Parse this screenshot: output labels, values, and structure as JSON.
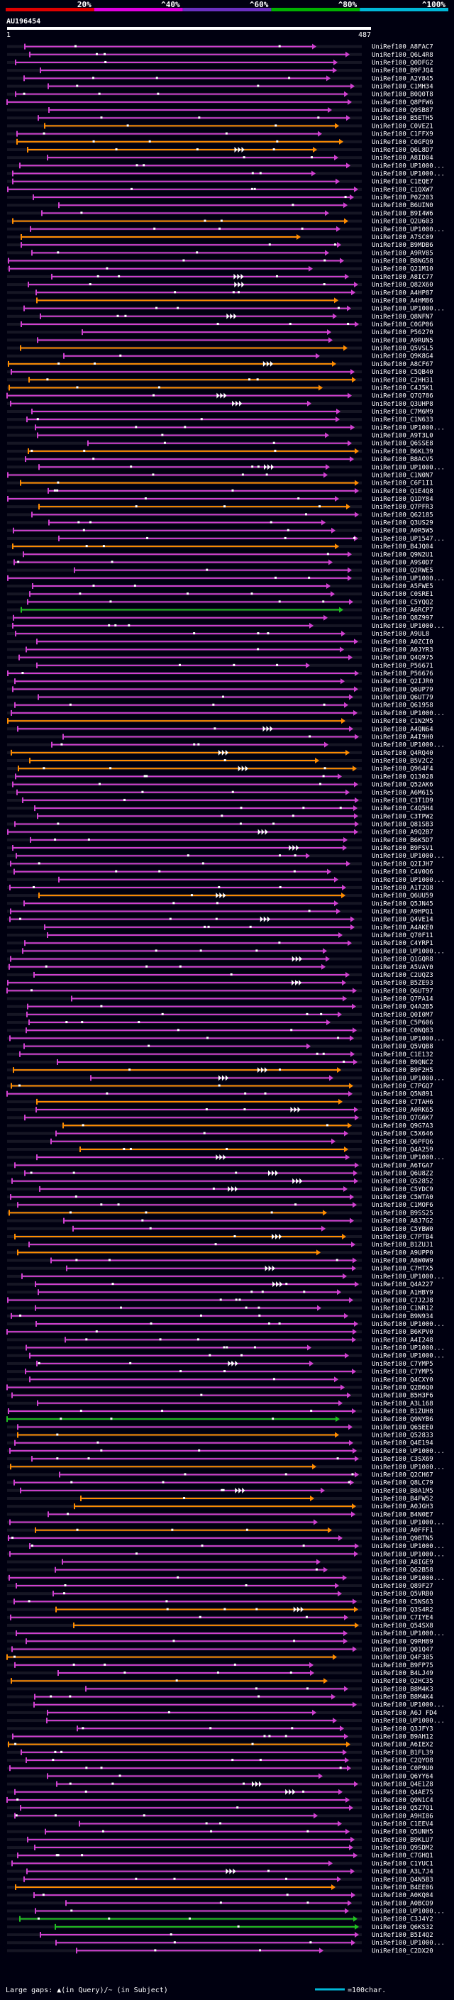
{
  "chart_data": {
    "type": "alignment-overview",
    "title": "AU196454",
    "query_start": 1,
    "query_end": 487,
    "identity_bands": [
      "20%",
      "^40%",
      "^60%",
      "^80%",
      "^100%"
    ],
    "band_colors": [
      "#e00000",
      "#e000e0",
      "#6a30c0",
      "#00b000",
      "#00b8d8"
    ],
    "color_legend": {
      "magenta": "#d040d0",
      "orange": "#ff8c00",
      "green": "#20c020"
    },
    "hits": [
      "UniRef100_A8FAC7",
      "UniRef100_Q6L4R8",
      "UniRef100_Q0DFG2",
      "UniRef100_B9FJQ4",
      "UniRef100_A2Y845",
      "UniRef100_C1MH34",
      "UniRef100_B0Q0T8",
      "UniRef100_Q8PFW6",
      "UniRef100_Q9SB87",
      "UniRef100_B5ETH5",
      "UniRef100_C0VEZ1",
      "UniRef100_C1FFX9",
      "UniRef100_C0GFQ9",
      "UniRef100_Q6L8D7",
      "UniRef100_A8ID04",
      "UniRef100_UP1000...",
      "UniRef100_UP1000...",
      "UniRef100_C1EQE7",
      "UniRef100_C1QXW7",
      "UniRef100_P0Z203",
      "UniRef100_B6UIN0",
      "UniRef100_B9I4W6",
      "UniRef100_Q2U603",
      "UniRef100_UP1000...",
      "UniRef100_A7SC09",
      "UniRef100_B9MDB6",
      "UniRef100_A9RV85",
      "UniRef100_B8NG58",
      "UniRef100_Q21M10",
      "UniRef100_A8IC77",
      "UniRef100_Q82X60",
      "UniRef100_A4HP87",
      "UniRef100_A4HM86",
      "UniRef100_UP1000...",
      "UniRef100_Q8NFN7",
      "UniRef100_C0GP06",
      "UniRef100_P56270",
      "UniRef100_A9RUN5",
      "UniRef100_Q5VSL5",
      "UniRef100_Q9K8G4",
      "UniRef100_A8CF67",
      "UniRef100_C5QB40",
      "UniRef100_C2HH31",
      "UniRef100_C4J5K1",
      "UniRef100_Q7Q786",
      "UniRef100_Q3UHP8",
      "UniRef100_C7M6M9",
      "UniRef100_C1N633",
      "UniRef100_UP1000...",
      "UniRef100_A9T3L0",
      "UniRef100_Q6SSE8",
      "UniRef100_B6KL39",
      "UniRef100_B8ACV5",
      "UniRef100_UP1000...",
      "UniRef100_C1N0N7",
      "UniRef100_C6F1I1",
      "UniRef100_Q1E4Q8",
      "UniRef100_Q1DY84",
      "UniRef100_Q7PFR3",
      "UniRef100_Q62185",
      "UniRef100_Q3US29",
      "UniRef100_A0R5W5",
      "UniRef100_UP1547...",
      "UniRef100_B4JQ04",
      "UniRef100_Q9N2U1",
      "UniRef100_A9S0D7",
      "UniRef100_Q2RWE5",
      "UniRef100_UP1000...",
      "UniRef100_A5FWE5",
      "UniRef100_C0SRE1",
      "UniRef100_C5YQQ2",
      "UniRef100_A6RCP7",
      "UniRef100_Q8Z997",
      "UniRef100_UP1000...",
      "UniRef100_A9UL8",
      "UniRef100_A0ZCI0",
      "UniRef100_A0JYR3",
      "UniRef100_Q4Q975",
      "UniRef100_P56671",
      "UniRef100_P56676",
      "UniRef100_Q2IJR0",
      "UniRef100_Q6UP79",
      "UniRef100_Q6UT79",
      "UniRef100_Q61958",
      "UniRef100_UP1000...",
      "UniRef100_C1N2M5",
      "UniRef100_A4QN64",
      "UniRef100_A4I9H0",
      "UniRef100_UP1000...",
      "UniRef100_Q4RQ40",
      "UniRef100_B5V2C2",
      "UniRef100_Q964F4",
      "UniRef100_Q13028",
      "UniRef100_Q52AK6",
      "UniRef100_A6M615",
      "UniRef100_C3T1D9",
      "UniRef100_C4Q5H4",
      "UniRef100_C3TPW2",
      "UniRef100_Q81SB3",
      "UniRef100_A9Q2B7",
      "UniRef100_B6K5D7",
      "UniRef100_B9FSV1",
      "UniRef100_UP1000...",
      "UniRef100_Q2IJH7",
      "UniRef100_C4V0Q6",
      "UniRef100_UP1000...",
      "UniRef100_A1T2Q8",
      "UniRef100_Q6UU59",
      "UniRef100_Q5JN45",
      "UniRef100_A9HPQ1",
      "UniRef100_Q4VE14",
      "UniRef100_A4AKE0",
      "UniRef100_Q70F11",
      "UniRef100_C4YRP1",
      "UniRef100_UP1000...",
      "UniRef100_Q1GQR8",
      "UniRef100_A5VAY0",
      "UniRef100_C2UQZ3",
      "UniRef100_B5ZE93",
      "UniRef100_Q6UT97",
      "UniRef100_Q7PA14",
      "UniRef100_Q4A2B5",
      "UniRef100_Q0I0M7",
      "UniRef100_C5P606",
      "UniRef100_C0NQ83",
      "UniRef100_UP1000...",
      "UniRef100_Q5VQB8",
      "UniRef100_C1E132",
      "UniRef100_B9QNC2",
      "UniRef100_B9F2H5",
      "UniRef100_UP1000...",
      "UniRef100_C7PGQ7",
      "UniRef100_Q5N891",
      "UniRef100_C7TAH6",
      "UniRef100_A0RK65",
      "UniRef100_Q7G6K7",
      "UniRef100_Q9G7A3",
      "UniRef100_C5X646",
      "UniRef100_Q6PFQ6",
      "UniRef100_Q4A259",
      "UniRef100_UP1000...",
      "UniRef100_A6TGA7",
      "UniRef100_Q6U8Z2",
      "UniRef100_Q52852",
      "UniRef100_C5YDC9",
      "UniRef100_C5WTA0",
      "UniRef100_C1MOF6",
      "UniRef100_B9SS25",
      "UniRef100_A8J7G2",
      "UniRef100_C5YBW0",
      "UniRef100_C7PTB4",
      "UniRef100_B1ZUJ1",
      "UniRef100_A9UPP0",
      "UniRef100_A8W0W9",
      "UniRef100_C7HTX5",
      "UniRef100_UP1000...",
      "UniRef100_Q4A227",
      "UniRef100_A1HBY9",
      "UniRef100_C7J2J8",
      "UniRef100_C1NR12",
      "UniRef100_B9N934",
      "UniRef100_UP1000...",
      "UniRef100_B6KPV0",
      "UniRef100_A4I248",
      "UniRef100_UP1000...",
      "UniRef100_UP1000...",
      "UniRef100_C7YMP5",
      "UniRef100_C7YMP5",
      "UniRef100_Q4CXY0",
      "UniRef100_Q2B6Q0",
      "UniRef100_B5H3F6",
      "UniRef100_A3L168",
      "UniRef100_B1ZUH8",
      "UniRef100_Q9NYB6",
      "UniRef100_Q65EE0",
      "UniRef100_Q52833",
      "UniRef100_Q4E194",
      "UniRef100_UP1000...",
      "UniRef100_C3SX69",
      "UniRef100_UP1000...",
      "UniRef100_Q2CH67",
      "UniRef100_Q8LC79",
      "UniRef100_B8A1M5",
      "UniRef100_B4FW52",
      "UniRef100_A0JGH3",
      "UniRef100_B4N0E7",
      "UniRef100_UP1000...",
      "UniRef100_A0FFF1",
      "UniRef100_Q9BTN5",
      "UniRef100_UP1000...",
      "UniRef100_UP1000...",
      "UniRef100_A8IGE9",
      "UniRef100_Q62B58",
      "UniRef100_UP1000...",
      "UniRef100_Q89F27",
      "UniRef100_Q5VRB0",
      "UniRef100_C5NS63",
      "UniRef100_Q3S4R2",
      "UniRef100_C7IYE4",
      "UniRef100_Q54SX8",
      "UniRef100_UP1000...",
      "UniRef100_Q9RH89",
      "UniRef100_Q01Q47",
      "UniRef100_Q4F385",
      "UniRef100_B9FP75",
      "UniRef100_B4LJ49",
      "UniRef100_Q2HC35",
      "UniRef100_B8M4K3",
      "UniRef100_B8M4K4",
      "UniRef100_UP1000...",
      "UniRef100_A6J FD4",
      "UniRef100_UP1000...",
      "UniRef100_Q3JFY3",
      "UniRef100_B9AH12",
      "UniRef100_A6IEX2",
      "UniRef100_B1FL39",
      "UniRef100_C2QYO8",
      "UniRef100_C0P9U0",
      "UniRef100_Q6YY64",
      "UniRef100_Q4E1Z8",
      "UniRef100_Q4AE75",
      "UniRef100_Q9N1C4",
      "UniRef100_Q5Z7Q1",
      "UniRef100_A9HI86",
      "UniRef100_C1EEV4",
      "UniRef100_Q5UNH5",
      "UniRef100_B9KLU7",
      "UniRef100_Q9SDM2",
      "UniRef100_C7GHQ1",
      "UniRef100_C1YUC1",
      "UniRef100_A3L7J4",
      "UniRef100_Q4N5B3",
      "UniRef100_B4EE06",
      "UniRef100_A0KQ04",
      "UniRef100_A0BCO9",
      "UniRef100_UP1000...",
      "UniRef100_C3J4Y2",
      "UniRef100_Q6KS32",
      "UniRef100_B5I4Q2",
      "UniRef100_UP1000...",
      "UniRef100_C2DX20"
    ],
    "footer": {
      "gaps_text": "Large gaps: ▲(in Query)/~ (in Subject)",
      "scale_text": "=100char."
    }
  }
}
